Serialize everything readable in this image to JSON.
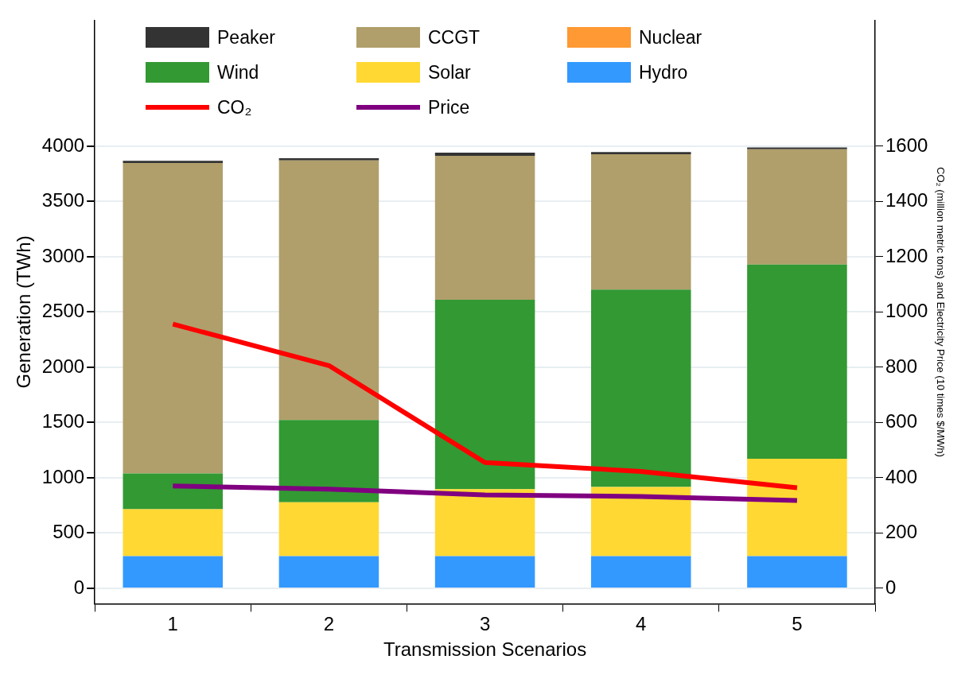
{
  "chart_data": {
    "type": "bar",
    "stacked": true,
    "xlabel": "Transmission Scenarios",
    "ylabel": "Generation (TWh)",
    "y2label": "CO₂ (million metric tons) and Electricity Price (10 times $/MWh)",
    "categories": [
      "1",
      "2",
      "3",
      "4",
      "5"
    ],
    "ylim": [
      -140,
      5140
    ],
    "yticks": [
      0,
      500,
      1000,
      1500,
      2000,
      2500,
      3000,
      3500,
      4000
    ],
    "y2lim": [
      -56,
      2056
    ],
    "y2ticks": [
      0,
      200,
      400,
      600,
      800,
      1000,
      1200,
      1400,
      1600
    ],
    "grid": "y",
    "legend": "top",
    "series": [
      {
        "name": "Hydro",
        "color": "#3399ff",
        "values": [
          290,
          290,
          290,
          290,
          290
        ]
      },
      {
        "name": "Solar",
        "color": "#ffd833",
        "values": [
          426,
          488,
          607,
          626,
          882
        ]
      },
      {
        "name": "Wind",
        "color": "#339933",
        "values": [
          323,
          745,
          1713,
          1787,
          1757
        ]
      },
      {
        "name": "Nuclear",
        "color": "#ff9933",
        "values": [
          0,
          0,
          0,
          0,
          0
        ]
      },
      {
        "name": "CCGT",
        "color": "#b09f6b",
        "values": [
          2809,
          2349,
          1302,
          1225,
          1044
        ]
      },
      {
        "name": "Peaker",
        "color": "#333333",
        "values": [
          19,
          19,
          29,
          19,
          16
        ]
      },
      {
        "name": "CO₂",
        "type": "line",
        "axis": "y2",
        "color": "#ff0000",
        "values": [
          956,
          806,
          455,
          423,
          364
        ]
      },
      {
        "name": "Price",
        "type": "line",
        "axis": "y2",
        "color": "#800080",
        "values": [
          370,
          359,
          338,
          332,
          318
        ]
      }
    ]
  }
}
